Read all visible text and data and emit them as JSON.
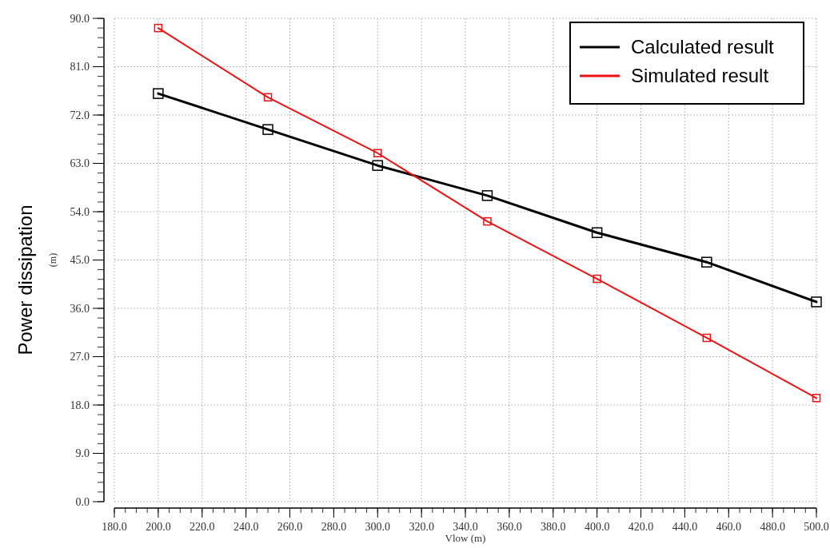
{
  "chart_data": {
    "type": "line",
    "xlabel": "Vlow (m)",
    "ylabel": "Power dissipation",
    "annotations": [
      "(m)"
    ],
    "x": [
      200,
      250,
      300,
      350,
      400,
      450,
      500
    ],
    "series": [
      {
        "name": "Calculated result",
        "color": "#000000",
        "values": [
          76.0,
          69.3,
          62.6,
          57.0,
          50.1,
          44.6,
          37.2
        ]
      },
      {
        "name": "Simulated result",
        "color": "#ee1111",
        "values": [
          88.2,
          75.3,
          64.9,
          52.2,
          41.5,
          30.5,
          19.3
        ]
      }
    ],
    "xlim": [
      180,
      500
    ],
    "xticks": [
      {
        "value": 180,
        "label": "180.0"
      },
      {
        "value": 200,
        "label": "200.0"
      },
      {
        "value": 220,
        "label": "220.0"
      },
      {
        "value": 240,
        "label": "240.0"
      },
      {
        "value": 260,
        "label": "260.0"
      },
      {
        "value": 280,
        "label": "280.0"
      },
      {
        "value": 300,
        "label": "300.0"
      },
      {
        "value": 320,
        "label": "320.0"
      },
      {
        "value": 340,
        "label": "340.0"
      },
      {
        "value": 360,
        "label": "360.0"
      },
      {
        "value": 380,
        "label": "380.0"
      },
      {
        "value": 400,
        "label": "400.0"
      },
      {
        "value": 420,
        "label": "420.0"
      },
      {
        "value": 440,
        "label": "440.0"
      },
      {
        "value": 460,
        "label": "460.0"
      },
      {
        "value": 480,
        "label": "480.0"
      },
      {
        "value": 500,
        "label": "500.0"
      }
    ],
    "ylim": [
      0,
      90
    ],
    "yticks": [
      {
        "value": 0,
        "label": "0.0"
      },
      {
        "value": 9,
        "label": "9.0"
      },
      {
        "value": 18,
        "label": "18.0"
      },
      {
        "value": 27,
        "label": "27.0"
      },
      {
        "value": 36,
        "label": "36.0"
      },
      {
        "value": 45,
        "label": "45.0"
      },
      {
        "value": 54,
        "label": "54.0"
      },
      {
        "value": 63,
        "label": "63.0"
      },
      {
        "value": 72,
        "label": "72.0"
      },
      {
        "value": 81,
        "label": "81.0"
      },
      {
        "value": 90,
        "label": "90.0"
      }
    ],
    "grid": true,
    "legend": "top right",
    "marker": "square",
    "line_style": "solid"
  }
}
